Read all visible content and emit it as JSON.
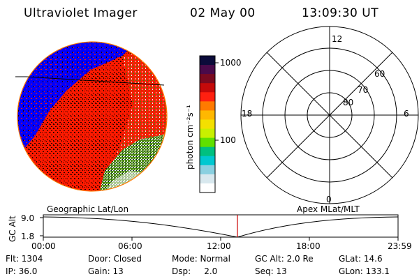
{
  "header": {
    "title": "Ultraviolet Imager",
    "date": "02 May 00",
    "time": "13:09:30 UT"
  },
  "colorbar": {
    "unit_label": "photon cm⁻²s⁻¹",
    "tick_labels": [
      "1000",
      "100"
    ],
    "colors": [
      "#0b0b3a",
      "#4a0a4a",
      "#7a0a20",
      "#c40a0a",
      "#ff2010",
      "#ff7a00",
      "#ffb800",
      "#f4e000",
      "#c8f000",
      "#60e000",
      "#00c080",
      "#00c8d0",
      "#8ad0e0",
      "#d8e8ee",
      "#ffffff"
    ]
  },
  "polar_plot": {
    "mlt_labels": {
      "top": "12",
      "bottom": "0",
      "left": "18",
      "right": "6"
    },
    "lat_labels": [
      "60",
      "70",
      "80"
    ]
  },
  "timeline": {
    "left_label": "Geographic Lat/Lon",
    "right_label": "Apex MLat/MLT",
    "axis_title": "GC Alt",
    "y_ticks": [
      "9.0",
      "1.8"
    ],
    "x_ticks": [
      "00:00",
      "06:00",
      "12:00",
      "18:00",
      "23:59"
    ],
    "current_time_marker": "13:09:30",
    "marker_color": "#cc0000"
  },
  "info": {
    "row1": [
      "Flt: 1304",
      "Door: Closed",
      "Mode: Normal",
      "GC Alt: 2.0 Re",
      "GLat:  14.6"
    ],
    "row2": [
      "IP: 36.0",
      "Gain: 13",
      "Dsp:     2.0",
      "Seq: 13",
      "GLon: 133.1"
    ]
  },
  "image_colors": {
    "blue": "#0000ff",
    "red": "#ff1a00",
    "dark": "#1a0000",
    "green": "#4a8a10",
    "white": "#ffffff",
    "navy": "#000050"
  }
}
